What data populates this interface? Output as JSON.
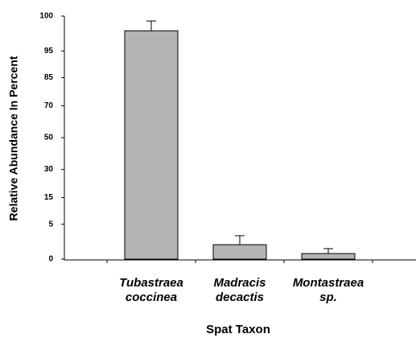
{
  "chart_data": {
    "type": "bar",
    "x_label": "Spat Taxon",
    "y_label": "Relative Abundance In Percent",
    "categories": [
      "Tubastraea\ncoccinea",
      "Madracis\ndecactis",
      "Montastraea\nsp."
    ],
    "values": [
      99.1,
      0.87,
      0.13
    ],
    "errors": [
      0.8,
      1.4,
      0.33
    ],
    "color": "#b4b4b4",
    "y_scale": "arcsine-sqrt",
    "ylim": [
      0,
      100
    ],
    "yticks": [
      0,
      5,
      15,
      30,
      50,
      70,
      85,
      95,
      100
    ]
  }
}
